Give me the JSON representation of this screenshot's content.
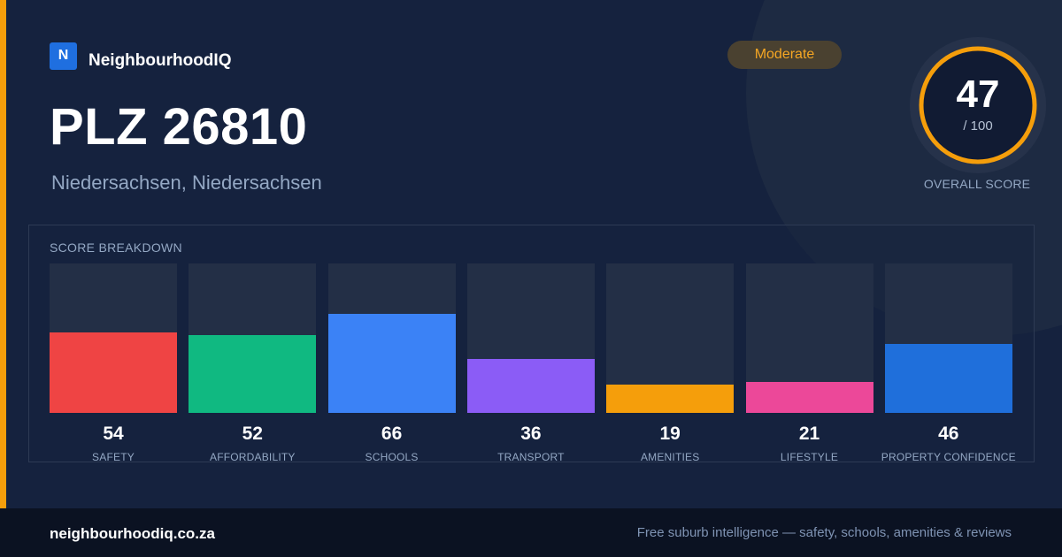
{
  "brand": {
    "logo_letter": "N",
    "name": "NeighbourhoodIQ"
  },
  "rating_badge": "Moderate",
  "title": "PLZ 26810",
  "subtitle": "Niedersachsen, Niedersachsen",
  "overall": {
    "score": "47",
    "max": "/ 100",
    "label": "OVERALL SCORE",
    "fraction": 0.47
  },
  "breakdown": {
    "title": "SCORE BREAKDOWN",
    "items": [
      {
        "label": "SAFETY",
        "value": "54",
        "percent": 54,
        "color": "#ef4444"
      },
      {
        "label": "AFFORDABILITY",
        "value": "52",
        "percent": 52,
        "color": "#10b981"
      },
      {
        "label": "SCHOOLS",
        "value": "66",
        "percent": 66,
        "color": "#3b82f6"
      },
      {
        "label": "TRANSPORT",
        "value": "36",
        "percent": 36,
        "color": "#8b5cf6"
      },
      {
        "label": "AMENITIES",
        "value": "19",
        "percent": 19,
        "color": "#f59e0b"
      },
      {
        "label": "LIFESTYLE",
        "value": "21",
        "percent": 21,
        "color": "#ec4899"
      },
      {
        "label": "PROPERTY CONFIDENCE",
        "value": "46",
        "percent": 46,
        "color": "#1f6fdb"
      }
    ]
  },
  "footer": {
    "domain": "neighbourhoodiq.co.za",
    "tagline": "Free suburb intelligence — safety, schools, amenities & reviews"
  },
  "colors": {
    "accent": "#f59e0b",
    "background": "#15223e",
    "brand_blue": "#1f6fe0"
  }
}
